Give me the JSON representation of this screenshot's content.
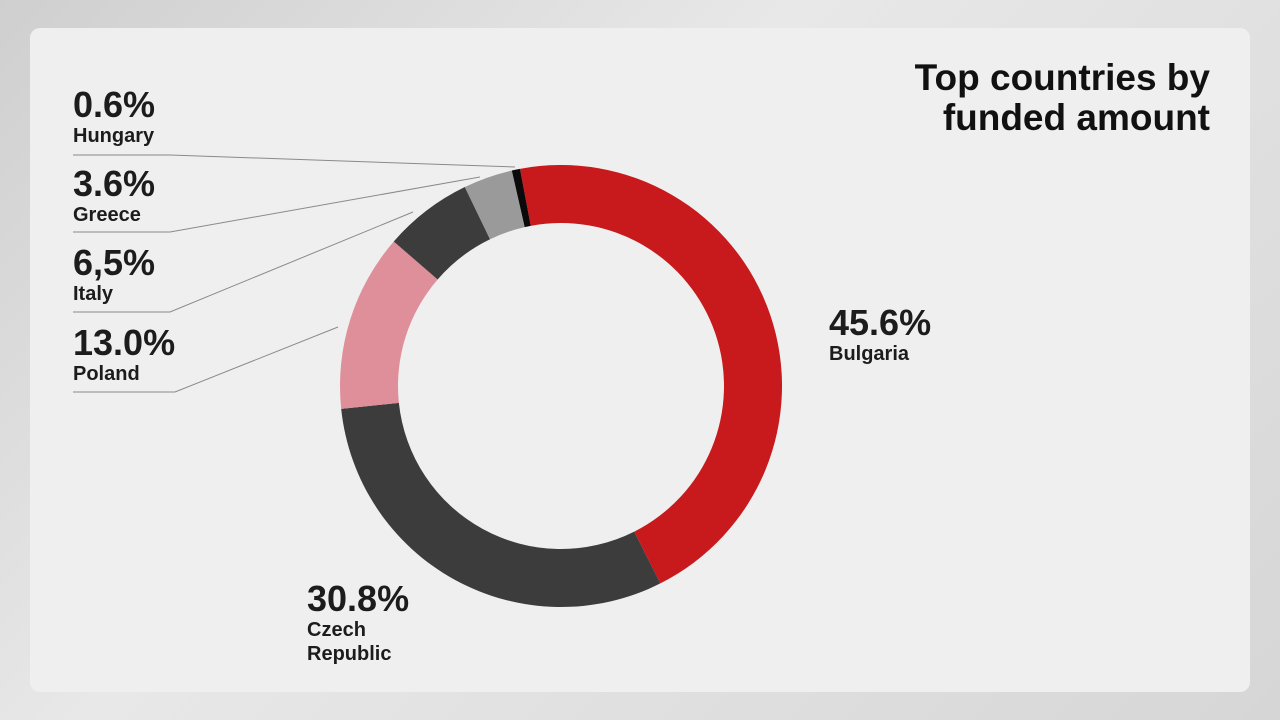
{
  "chart_data": {
    "type": "donut",
    "title": "Top countries by funded amount",
    "categories": [
      "Bulgaria",
      "Czech Republic",
      "Poland",
      "Italy",
      "Greece",
      "Hungary"
    ],
    "values": [
      45.6,
      30.8,
      13.0,
      6.5,
      3.6,
      0.6
    ],
    "value_labels": [
      "45.6%",
      "30.8%",
      "13.0%",
      "6,5%",
      "3.6%",
      "0.6%"
    ],
    "colors": [
      "#c8191c",
      "#3c3c3c",
      "#de8f99",
      "#3c3c3c",
      "#9a9a9a",
      "#0a0a0a"
    ]
  }
}
